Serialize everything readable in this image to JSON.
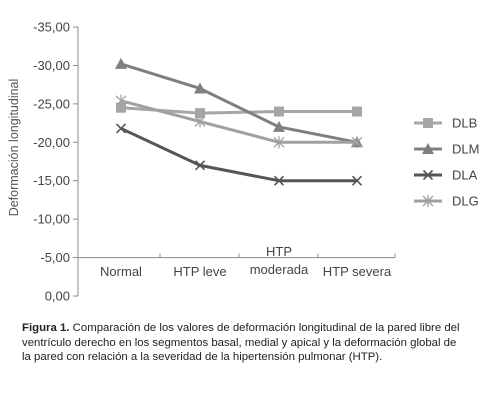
{
  "chart_data": {
    "type": "line",
    "ylabel": "Deformación longitudinal",
    "categories": [
      "Normal",
      "HTP leve",
      "HTP\nmoderada",
      "HTP severa"
    ],
    "ylim": [
      0,
      -35
    ],
    "yticks": [
      "-35,00",
      "-30,00",
      "-25,00",
      "-20,00",
      "-15,00",
      "-10,00",
      "-5,00",
      "0,00"
    ],
    "legend_position": "right",
    "series": [
      {
        "name": "DLB",
        "values": [
          -24.5,
          -23.8,
          -24.0,
          -24.0
        ],
        "color": "#a6a6a6",
        "marker": "square"
      },
      {
        "name": "DLM",
        "values": [
          -30.2,
          -27.0,
          -22.0,
          -20.0
        ],
        "color": "#7f7f7f",
        "marker": "triangle"
      },
      {
        "name": "DLA",
        "values": [
          -21.8,
          -17.0,
          -15.0,
          -15.0
        ],
        "color": "#555555",
        "marker": "x"
      },
      {
        "name": "DLG",
        "values": [
          -25.4,
          -22.7,
          -20.0,
          -20.0
        ],
        "color": "#a0a0a0",
        "marker": "star"
      }
    ]
  },
  "caption": {
    "label": "Figura 1.",
    "text": "Comparación de los valores de deformación longitudinal de la pared libre del ventrículo derecho en los segmentos basal, medial y apical y la deformación global de la pared con relación a la severidad de la hipertensión pulmonar (HTP)."
  }
}
